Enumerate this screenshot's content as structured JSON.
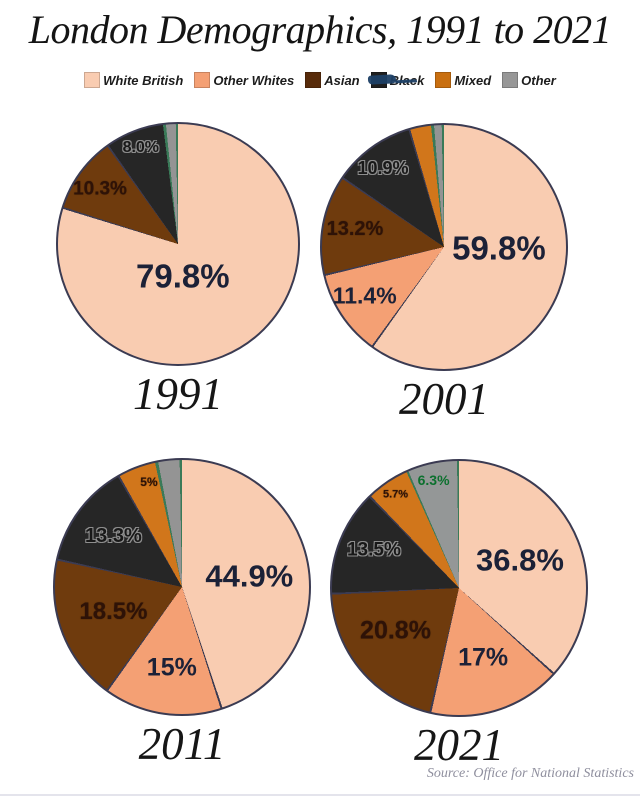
{
  "title": "London Demographics, 1991 to 2021",
  "source": "Source: Office for National Statistics",
  "legend": [
    {
      "label": "White British",
      "color": "#F9CCB1"
    },
    {
      "label": "Other Whites",
      "color": "#F4A074"
    },
    {
      "label": "Asian",
      "color": "#582B0A"
    },
    {
      "label": "Black",
      "color": "#1F1F1F",
      "redacted": true
    },
    {
      "label": "Mixed",
      "color": "#C96F10"
    },
    {
      "label": "Other",
      "color": "#979797"
    }
  ],
  "colors": {
    "white_british": "#F9CCB1",
    "other_whites": "#F4A074",
    "asian": "#6F3B0D",
    "black": "#262626",
    "mixed": "#D1761B",
    "other": "#949494",
    "slice_outline": "#3B3B52",
    "other_slice_edge": "#3A7A58",
    "big_label": "#1C2137"
  },
  "chart_data": {
    "type": "pie",
    "title": "London Demographics, 1991 to 2021",
    "legend_position": "top",
    "categories": [
      "White British",
      "Other Whites",
      "Asian",
      "Black",
      "Mixed",
      "Other"
    ],
    "line_color": "#3B3B52",
    "pies": [
      {
        "year": "1991",
        "slices": [
          {
            "label": "White British",
            "value": 79.8,
            "display": "79.8%",
            "color": "#F9CCB1",
            "pos": [
              52,
              63.5
            ],
            "size": 33,
            "cls": "navy"
          },
          {
            "label": "Asian",
            "value": 10.3,
            "display": "10.3%",
            "color": "#6F3B0D",
            "pos": [
              17.5,
              27
            ],
            "size": 19,
            "cls": "brown"
          },
          {
            "label": "Black",
            "value": 8.0,
            "display": "8.0%",
            "color": "#262626",
            "pos": [
              34.5,
              10
            ],
            "size": 16,
            "cls": "outline"
          },
          {
            "label": "divider",
            "value": 0.4,
            "display": "",
            "color": "#3A7A58"
          },
          {
            "label": "Other",
            "value": 1.3,
            "display": "",
            "color": "#949494"
          },
          {
            "label": "divider",
            "value": 0.3,
            "display": "",
            "color": "#3A7A58"
          }
        ]
      },
      {
        "year": "2001",
        "slices": [
          {
            "label": "White British",
            "value": 59.8,
            "display": "59.8%",
            "color": "#F9CCB1",
            "pos": [
              72.5,
              50.5
            ],
            "size": 33,
            "cls": "navy"
          },
          {
            "label": "Other Whites",
            "value": 11.4,
            "display": "11.4%",
            "color": "#F4A074",
            "pos": [
              17.5,
              70
            ],
            "size": 23,
            "cls": "navy"
          },
          {
            "label": "Asian",
            "value": 13.2,
            "display": "13.2%",
            "color": "#6F3B0D",
            "pos": [
              13.5,
              42.5
            ],
            "size": 20,
            "cls": "brown"
          },
          {
            "label": "Black",
            "value": 10.9,
            "display": "10.9%",
            "color": "#262626",
            "pos": [
              25,
              17.5
            ],
            "size": 18,
            "cls": "outline"
          },
          {
            "label": "Mixed",
            "value": 3.0,
            "display": "",
            "color": "#D1761B"
          },
          {
            "label": "divider",
            "value": 0.4,
            "display": "",
            "color": "#3A7A58"
          },
          {
            "label": "Other",
            "value": 1.0,
            "display": "",
            "color": "#949494"
          },
          {
            "label": "divider",
            "value": 0.3,
            "display": "",
            "color": "#3A7A58"
          }
        ]
      },
      {
        "year": "2011",
        "slices": [
          {
            "label": "White British",
            "value": 44.9,
            "display": "44.9%",
            "color": "#F9CCB1",
            "pos": [
              76.5,
              45.5
            ],
            "size": 31,
            "cls": "navy"
          },
          {
            "label": "Other Whites",
            "value": 15,
            "display": "15%",
            "color": "#F4A074",
            "pos": [
              46,
              82
            ],
            "size": 25,
            "cls": "navy"
          },
          {
            "label": "Asian",
            "value": 18.5,
            "display": "18.5%",
            "color": "#6F3B0D",
            "pos": [
              23,
              60
            ],
            "size": 24,
            "cls": "brown"
          },
          {
            "label": "Black",
            "value": 13.3,
            "display": "13.3%",
            "color": "#262626",
            "pos": [
              23,
              30
            ],
            "size": 20,
            "cls": "outline"
          },
          {
            "label": "Mixed",
            "value": 5,
            "display": "5%",
            "color": "#D1761B",
            "pos": [
              37,
              8.8
            ],
            "size": 12,
            "cls": "brown"
          },
          {
            "label": "divider",
            "value": 0.4,
            "display": "",
            "color": "#3A7A58"
          },
          {
            "label": "Other",
            "value": 2.7,
            "display": "",
            "color": "#949494"
          },
          {
            "label": "divider",
            "value": 0.3,
            "display": "",
            "color": "#3A7A58"
          }
        ]
      },
      {
        "year": "2021",
        "slices": [
          {
            "label": "White British",
            "value": 36.8,
            "display": "36.8%",
            "color": "#F9CCB1",
            "pos": [
              74,
              39
            ],
            "size": 31,
            "cls": "navy"
          },
          {
            "label": "Other Whites",
            "value": 17,
            "display": "17%",
            "color": "#F4A074",
            "pos": [
              59.5,
              77.5
            ],
            "size": 25,
            "cls": "navy"
          },
          {
            "label": "Asian",
            "value": 20.8,
            "display": "20.8%",
            "color": "#6F3B0D",
            "pos": [
              25,
              67
            ],
            "size": 25,
            "cls": "brown"
          },
          {
            "label": "Black",
            "value": 13.5,
            "display": "13.5%",
            "color": "#262626",
            "pos": [
              16.5,
              35
            ],
            "size": 19,
            "cls": "outline"
          },
          {
            "label": "Mixed",
            "value": 5.7,
            "display": "5.7%",
            "color": "#D1761B",
            "pos": [
              25,
              13.5
            ],
            "size": 11,
            "cls": "brown"
          },
          {
            "label": "divider",
            "value": 0.25,
            "display": "",
            "color": "#3A7A58"
          },
          {
            "label": "Other",
            "value": 6.3,
            "display": "6.3%",
            "color": "#949797",
            "pos": [
              40,
              7.5
            ],
            "size": 14,
            "cls": "green"
          },
          {
            "label": "divider",
            "value": 0.25,
            "display": "",
            "color": "#3A7A58"
          }
        ]
      }
    ]
  }
}
